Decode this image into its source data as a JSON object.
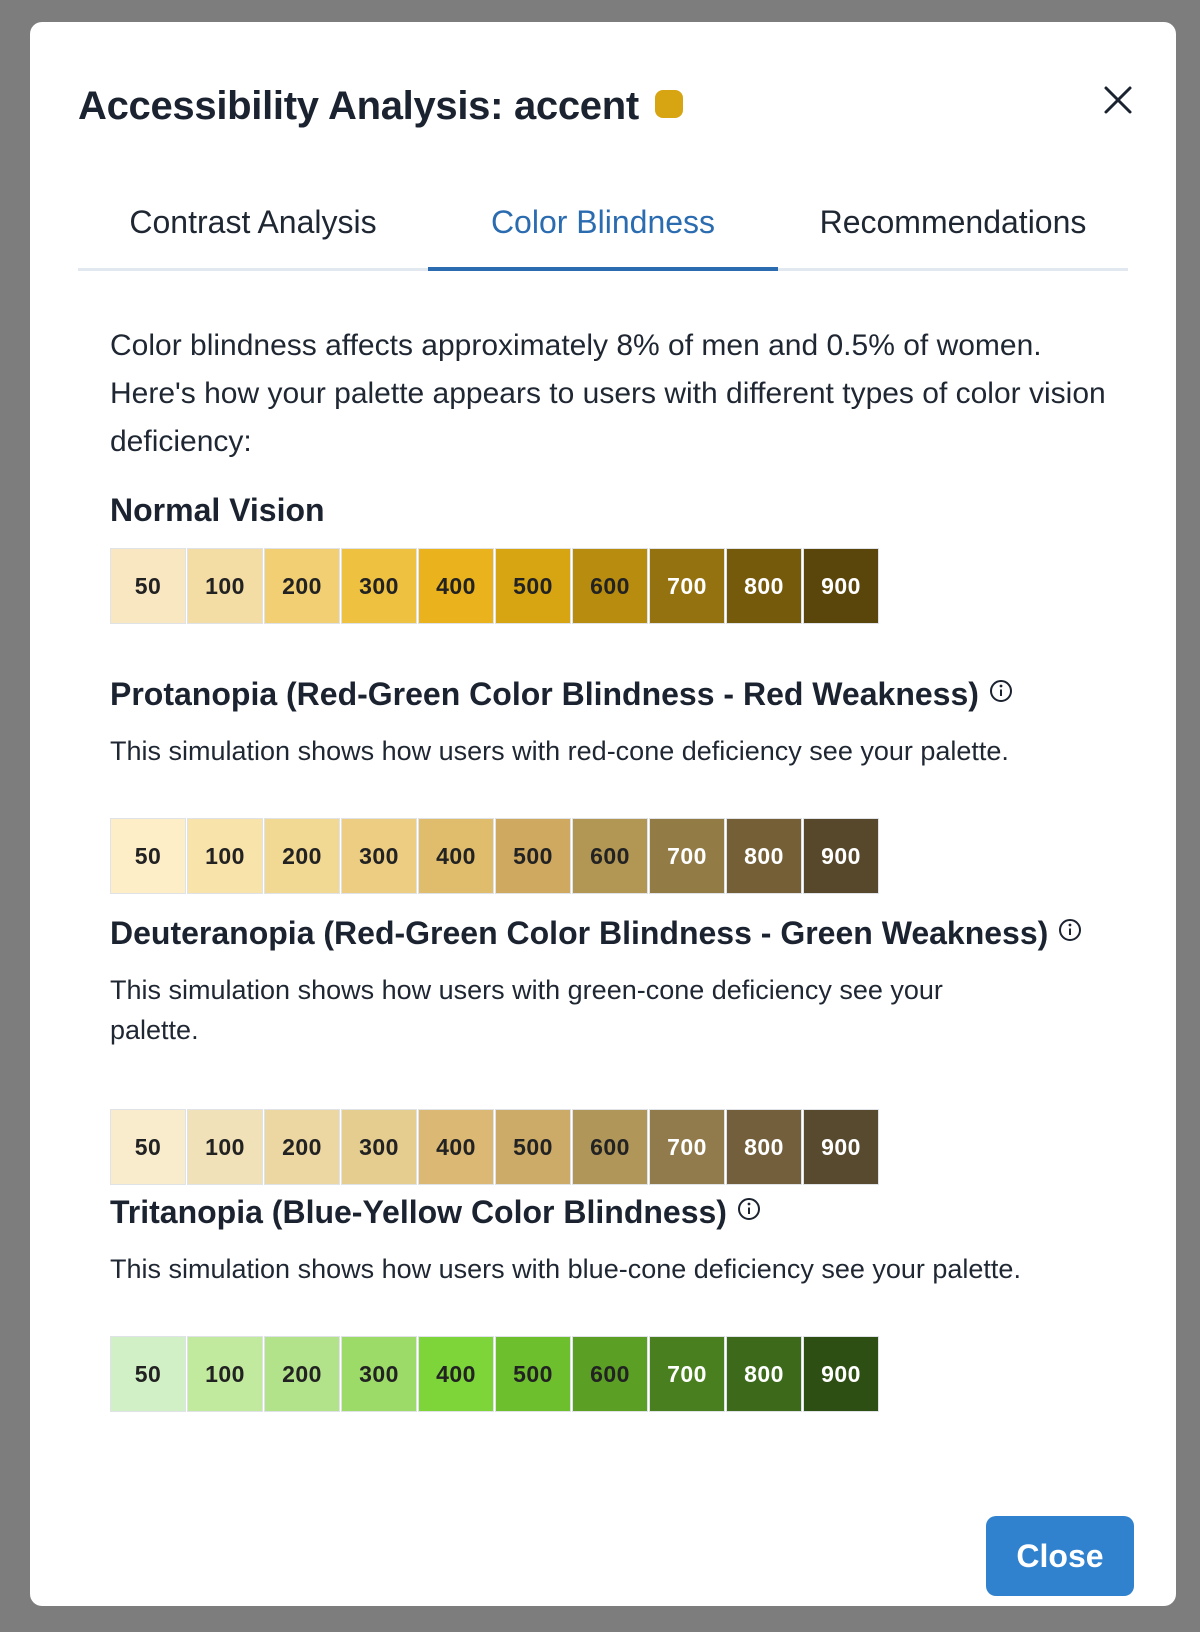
{
  "modal": {
    "title": "Accessibility Analysis: accent",
    "accent_color": "#d7a412",
    "close_icon": "close-icon",
    "close_button_label": "Close"
  },
  "tabs": [
    {
      "label": "Contrast Analysis",
      "active": false
    },
    {
      "label": "Color Blindness",
      "active": true
    },
    {
      "label": "Recommendations",
      "active": false
    }
  ],
  "intro_text": "Color blindness affects approximately 8% of men and 0.5% of women. Here's how your palette appears to users with different types of color vision deficiency:",
  "shade_labels": [
    "50",
    "100",
    "200",
    "300",
    "400",
    "500",
    "600",
    "700",
    "800",
    "900"
  ],
  "sections": [
    {
      "title": "Normal Vision",
      "info_icon": false,
      "description": "",
      "colors": [
        "#f8e7c0",
        "#f4dda4",
        "#f2cf73",
        "#efc141",
        "#eab21c",
        "#d7a412",
        "#b88c0e",
        "#93720f",
        "#755a0c",
        "#5a460a"
      ],
      "text_colors": [
        "#222",
        "#222",
        "#222",
        "#222",
        "#222",
        "#222",
        "#222",
        "#fff",
        "#fff",
        "#fff"
      ]
    },
    {
      "title": "Protanopia (Red-Green Color Blindness - Red Weakness)",
      "info_icon": true,
      "description": "This simulation shows how users with red-cone deficiency see your palette.",
      "colors": [
        "#fdeec8",
        "#f8e3ab",
        "#f1d893",
        "#eccd82",
        "#e0bd6c",
        "#cea95f",
        "#b19654",
        "#927b45",
        "#745f37",
        "#57482b"
      ],
      "text_colors": [
        "#222",
        "#222",
        "#222",
        "#222",
        "#222",
        "#222",
        "#222",
        "#fff",
        "#fff",
        "#fff"
      ]
    },
    {
      "title": "Deuteranopia (Red-Green Color Blindness - Green Weakness)",
      "info_icon": true,
      "description": "This simulation shows how users with green-cone deficiency see your palette.",
      "colors": [
        "#f8eccc",
        "#f1e1b8",
        "#ecd6a2",
        "#e5cc8f",
        "#dbb974",
        "#ccaa68",
        "#b09659",
        "#917a4b",
        "#735f3b",
        "#574a2f"
      ],
      "text_colors": [
        "#222",
        "#222",
        "#222",
        "#222",
        "#222",
        "#222",
        "#222",
        "#fff",
        "#fff",
        "#fff"
      ]
    },
    {
      "title": "Tritanopia (Blue-Yellow Color Blindness)",
      "info_icon": true,
      "description": "This simulation shows how users with blue-cone deficiency see your palette.",
      "colors": [
        "#d2f0c6",
        "#c2ea9f",
        "#b2e28a",
        "#9ddb69",
        "#7ed53a",
        "#6dbf2e",
        "#5b9f25",
        "#4a7f1f",
        "#3d6a1a",
        "#2e4f14"
      ],
      "text_colors": [
        "#222",
        "#222",
        "#222",
        "#222",
        "#222",
        "#222",
        "#222",
        "#fff",
        "#fff",
        "#fff"
      ]
    }
  ]
}
